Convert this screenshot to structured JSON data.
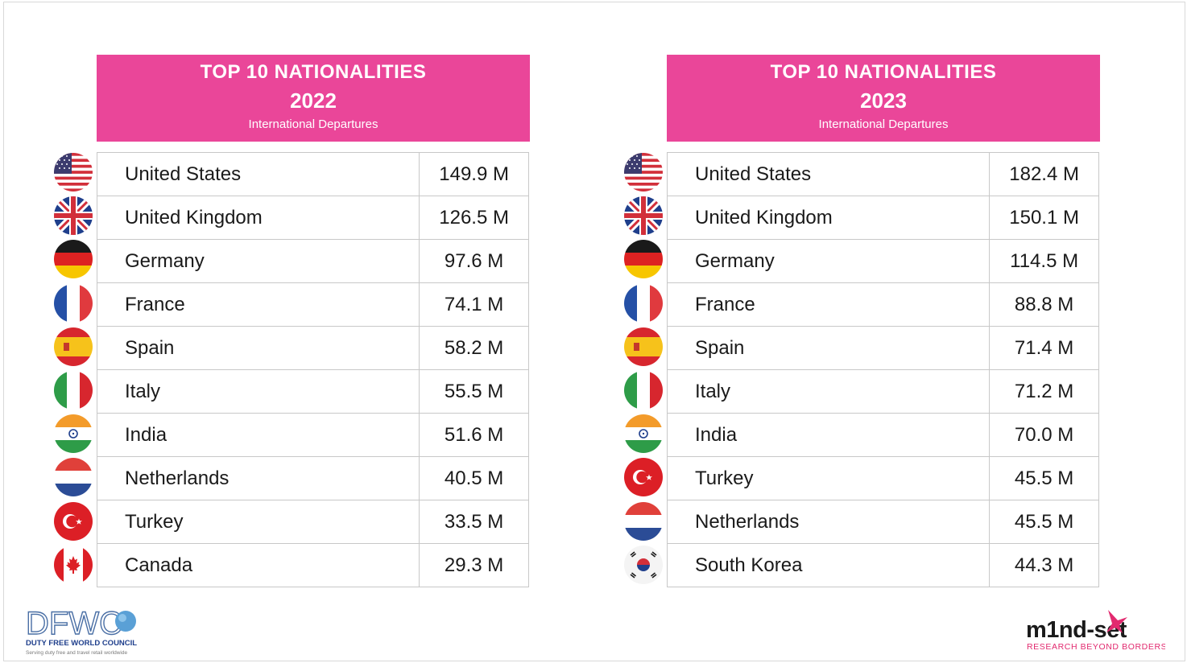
{
  "left": {
    "title": "TOP 10 NATIONALITIES",
    "year": "2022",
    "subtitle": "International Departures",
    "rows": [
      {
        "country": "United States",
        "value": "149.9 M",
        "flag": "us-flag-icon"
      },
      {
        "country": "United Kingdom",
        "value": "126.5 M",
        "flag": "uk-flag-icon"
      },
      {
        "country": "Germany",
        "value": "97.6 M",
        "flag": "germany-flag-icon"
      },
      {
        "country": "France",
        "value": "74.1 M",
        "flag": "france-flag-icon"
      },
      {
        "country": "Spain",
        "value": "58.2 M",
        "flag": "spain-flag-icon"
      },
      {
        "country": "Italy",
        "value": "55.5 M",
        "flag": "italy-flag-icon"
      },
      {
        "country": "India",
        "value": "51.6 M",
        "flag": "india-flag-icon"
      },
      {
        "country": "Netherlands",
        "value": "40.5 M",
        "flag": "netherlands-flag-icon"
      },
      {
        "country": "Turkey",
        "value": "33.5 M",
        "flag": "turkey-flag-icon"
      },
      {
        "country": "Canada",
        "value": "29.3 M",
        "flag": "canada-flag-icon"
      }
    ]
  },
  "right": {
    "title": "TOP 10 NATIONALITIES",
    "year": "2023",
    "subtitle": "International Departures",
    "rows": [
      {
        "country": "United States",
        "value": "182.4 M",
        "flag": "us-flag-icon"
      },
      {
        "country": "United Kingdom",
        "value": "150.1 M",
        "flag": "uk-flag-icon"
      },
      {
        "country": "Germany",
        "value": "114.5 M",
        "flag": "germany-flag-icon"
      },
      {
        "country": "France",
        "value": "88.8 M",
        "flag": "france-flag-icon"
      },
      {
        "country": "Spain",
        "value": "71.4 M",
        "flag": "spain-flag-icon"
      },
      {
        "country": "Italy",
        "value": "71.2 M",
        "flag": "italy-flag-icon"
      },
      {
        "country": "India",
        "value": "70.0 M",
        "flag": "india-flag-icon"
      },
      {
        "country": "Turkey",
        "value": "45.5 M",
        "flag": "turkey-flag-icon"
      },
      {
        "country": "Netherlands",
        "value": "45.5 M",
        "flag": "netherlands-flag-icon"
      },
      {
        "country": "South Korea",
        "value": "44.3 M",
        "flag": "south-korea-flag-icon"
      }
    ]
  },
  "logos": {
    "dfwc": {
      "mark": "DFWC",
      "name": "DUTY FREE WORLD COUNCIL",
      "tagline": "Serving duty free and travel retail worldwide"
    },
    "mindset": {
      "mark": "m1nd-set",
      "tagline": "RESEARCH BEYOND BORDERS"
    }
  },
  "colors": {
    "header": "#ea4699",
    "border": "#c8c8c8"
  }
}
